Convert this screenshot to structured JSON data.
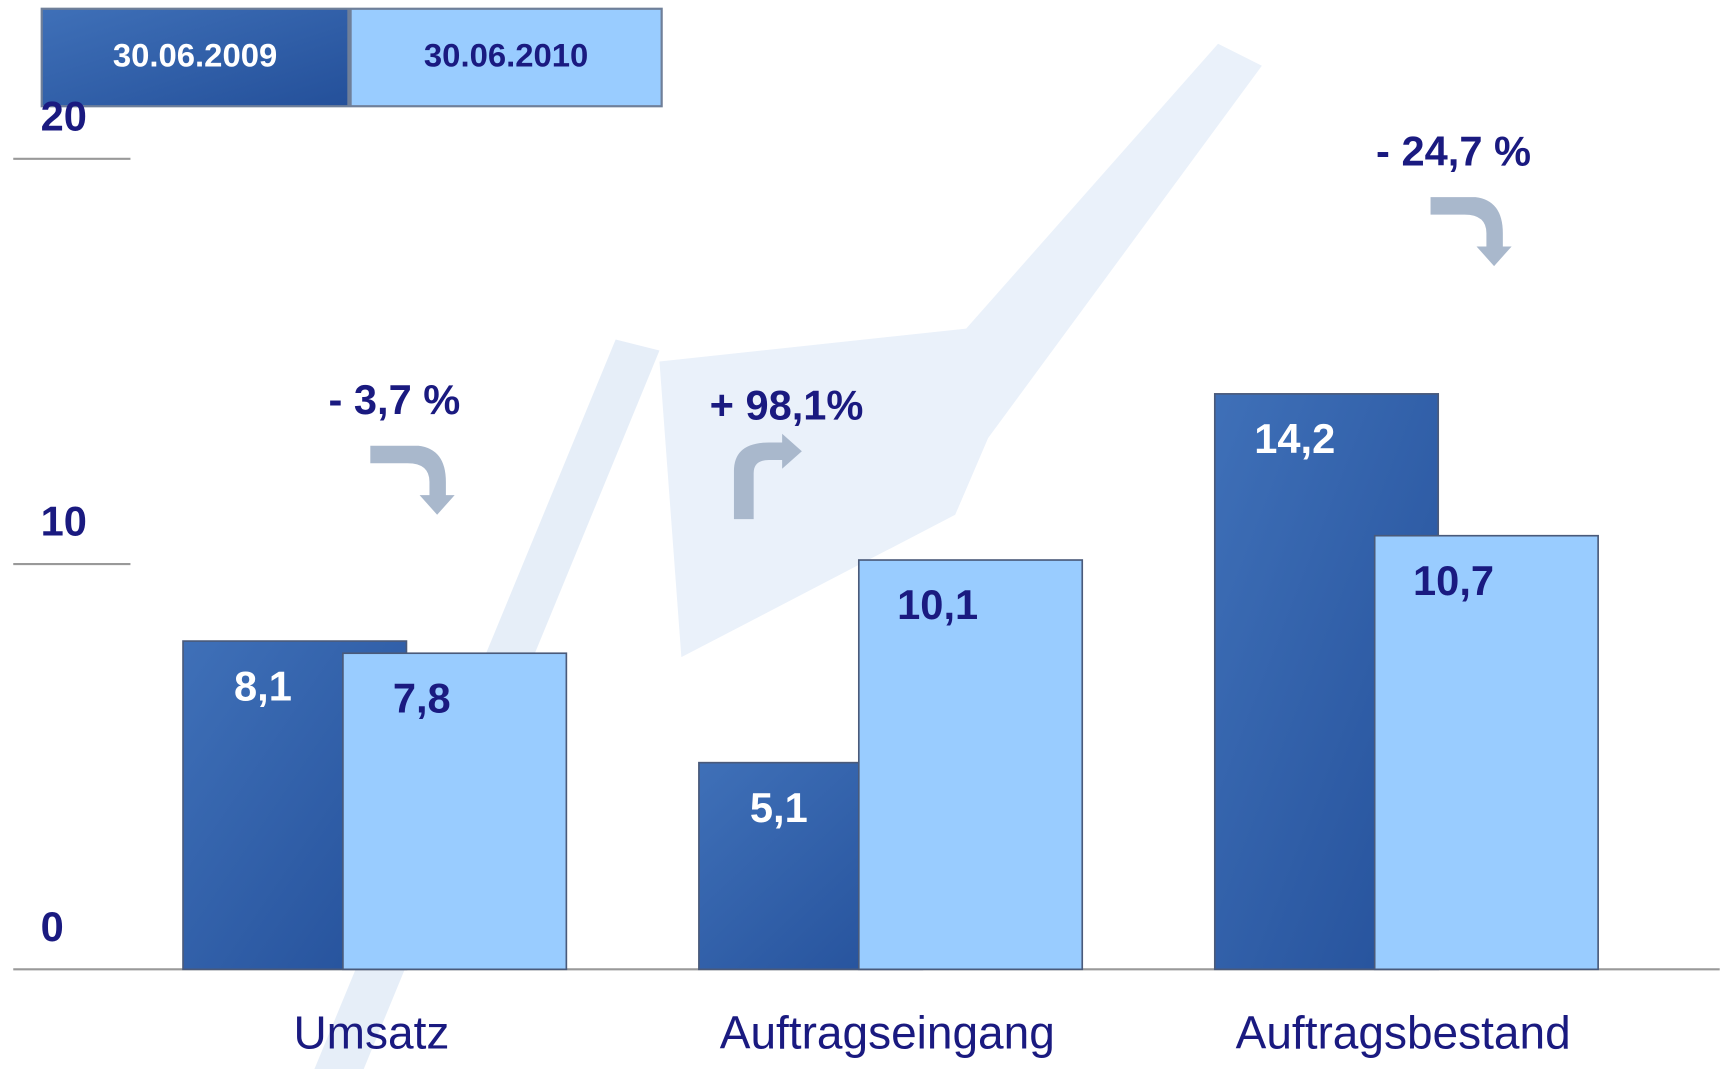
{
  "chart_data": {
    "type": "bar",
    "categories": [
      "Umsatz",
      "Auftragseingang",
      "Auftragsbestand"
    ],
    "series": [
      {
        "name": "30.06.2009",
        "color": "#2f5fa6",
        "values": [
          8.1,
          5.1,
          14.2
        ],
        "value_labels": [
          "8,1",
          "5,1",
          "14,2"
        ]
      },
      {
        "name": "30.06.2010",
        "color": "#99ccff",
        "values": [
          7.8,
          10.1,
          10.7
        ],
        "value_labels": [
          "7,8",
          "10,1",
          "10,7"
        ]
      }
    ],
    "annotations": [
      "- 3,7 %",
      "+ 98,1%",
      "- 24,7 %"
    ],
    "ylim": [
      0,
      20
    ],
    "yticks": [
      0,
      10,
      20
    ]
  }
}
